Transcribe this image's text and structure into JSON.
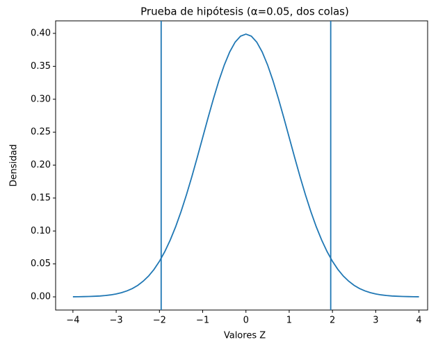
{
  "chart_data": {
    "type": "line",
    "title": "Prueba de hipótesis (α=0.05, dos colas)",
    "xlabel": "Valores Z",
    "ylabel": "Densidad",
    "x": [
      -4,
      -3.875,
      -3.75,
      -3.625,
      -3.5,
      -3.375,
      -3.25,
      -3.125,
      -3,
      -2.875,
      -2.75,
      -2.625,
      -2.5,
      -2.375,
      -2.25,
      -2.125,
      -2,
      -1.875,
      -1.75,
      -1.625,
      -1.5,
      -1.375,
      -1.25,
      -1.125,
      -1,
      -0.875,
      -0.75,
      -0.625,
      -0.5,
      -0.375,
      -0.25,
      -0.125,
      0,
      0.125,
      0.25,
      0.375,
      0.5,
      0.625,
      0.75,
      0.875,
      1,
      1.125,
      1.25,
      1.375,
      1.5,
      1.625,
      1.75,
      1.875,
      2,
      2.125,
      2.25,
      2.375,
      2.5,
      2.625,
      2.75,
      2.875,
      3,
      3.125,
      3.25,
      3.375,
      3.5,
      3.625,
      3.75,
      3.875,
      4
    ],
    "series": [
      {
        "color": "#1f77b4",
        "values": [
          0.0001,
          0.0002,
          0.0004,
          0.0006,
          0.0009,
          0.0013,
          0.002,
          0.003,
          0.0044,
          0.0064,
          0.0091,
          0.0127,
          0.0175,
          0.0238,
          0.0317,
          0.0417,
          0.054,
          0.0688,
          0.0863,
          0.1065,
          0.1295,
          0.155,
          0.1826,
          0.2119,
          0.242,
          0.2721,
          0.3011,
          0.3282,
          0.3521,
          0.3719,
          0.3867,
          0.3958,
          0.3989,
          0.3958,
          0.3867,
          0.3719,
          0.3521,
          0.3282,
          0.3011,
          0.2721,
          0.242,
          0.2119,
          0.1826,
          0.155,
          0.1295,
          0.1065,
          0.0863,
          0.0688,
          0.054,
          0.0417,
          0.0317,
          0.0238,
          0.0175,
          0.0127,
          0.0091,
          0.0064,
          0.0044,
          0.003,
          0.002,
          0.0013,
          0.0009,
          0.0006,
          0.0004,
          0.0002,
          0.0001
        ]
      }
    ],
    "vlines": [
      -1.96,
      1.96
    ],
    "vline_color": "#1f77b4",
    "xlim": [
      -4.4,
      4.2
    ],
    "ylim": [
      -0.02,
      0.419
    ],
    "xticks": [
      {
        "value": -4,
        "label": "−4"
      },
      {
        "value": -3,
        "label": "−3"
      },
      {
        "value": -2,
        "label": "−2"
      },
      {
        "value": -1,
        "label": "−1"
      },
      0,
      1,
      2,
      3,
      4
    ],
    "yticks": [
      {
        "value": 0,
        "label": "0.00"
      },
      0.05,
      {
        "value": 0.1,
        "label": "0.10"
      },
      0.15,
      {
        "value": 0.2,
        "label": "0.20"
      },
      0.25,
      {
        "value": 0.3,
        "label": "0.30"
      },
      0.35,
      {
        "value": 0.4,
        "label": "0.40"
      }
    ]
  }
}
